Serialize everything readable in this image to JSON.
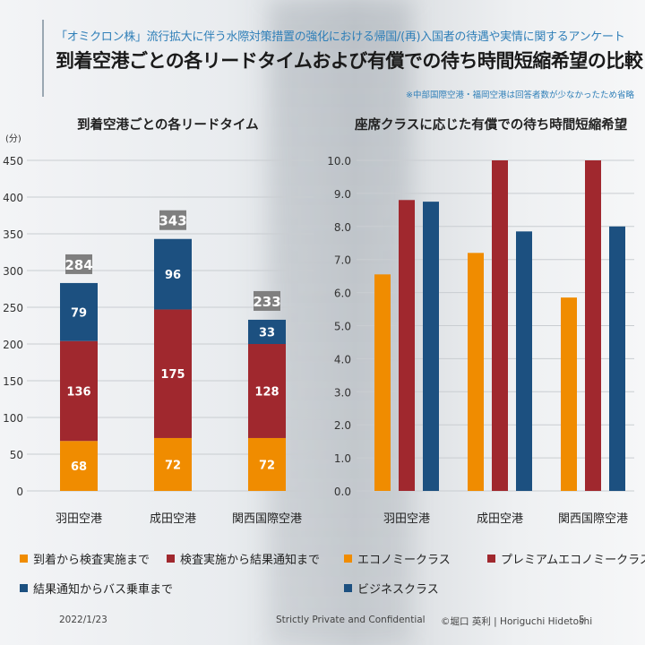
{
  "header": {
    "subtitle": "「オミクロン株」流行拡大に伴う水際対策措置の強化における帰国/(再)入国者の待遇や実情に関するアンケート",
    "title": "到着空港ごとの各リードタイムおよび有償での待ち時間短縮希望の比較",
    "note": "※中部国際空港・福岡空港は回答者数が少なかったため省略"
  },
  "chart_data": [
    {
      "type": "bar",
      "stacked": true,
      "title": "到着空港ごとの各リードタイム",
      "ylabel": "(分)",
      "ylim": [
        0,
        450
      ],
      "yticks": [
        0,
        50,
        100,
        150,
        200,
        250,
        300,
        350,
        400,
        450
      ],
      "categories": [
        "羽田空港",
        "成田空港",
        "関西国際空港"
      ],
      "series": [
        {
          "name": "到着から検査実施まで",
          "values": [
            68,
            72,
            72
          ],
          "color": "#f08c00"
        },
        {
          "name": "検査実施から結果通知まで",
          "values": [
            136,
            175,
            128
          ],
          "color": "#a0282e"
        },
        {
          "name": "結果通知からバス乗車まで",
          "values": [
            79,
            96,
            33
          ],
          "color": "#1c5080"
        }
      ],
      "totals": [
        284,
        343,
        233
      ],
      "grid": true,
      "legend": "bottom"
    },
    {
      "type": "bar",
      "title": "座席クラスに応じた有償での待ち時間短縮希望",
      "ylim": [
        0,
        10
      ],
      "yticks": [
        "0.0",
        "1.0",
        "2.0",
        "3.0",
        "4.0",
        "5.0",
        "6.0",
        "7.0",
        "8.0",
        "9.0",
        "10.0"
      ],
      "categories": [
        "羽田空港",
        "成田空港",
        "関西国際空港"
      ],
      "series": [
        {
          "name": "エコノミークラス",
          "values": [
            6.55,
            7.2,
            5.85
          ],
          "color": "#f08c00"
        },
        {
          "name": "プレミアムエコノミークラス",
          "values": [
            8.8,
            10.0,
            10.0
          ],
          "color": "#a0282e"
        },
        {
          "name": "ビジネスクラス",
          "values": [
            8.75,
            7.85,
            8.0
          ],
          "color": "#1c5080"
        }
      ],
      "grid": true,
      "legend": "bottom"
    }
  ],
  "footer": {
    "date": "2022/1/23",
    "confidential": "Strictly Private and Confidential",
    "copyright": "©堀口 英利 | Horiguchi Hidetoshi",
    "page": "5"
  }
}
